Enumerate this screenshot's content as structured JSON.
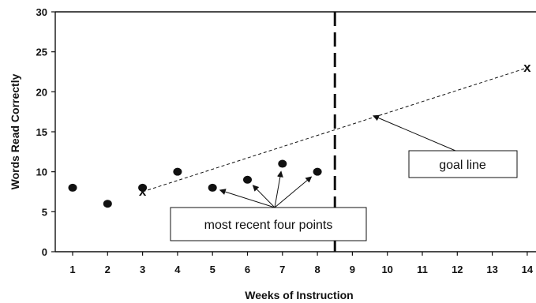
{
  "chart_data": {
    "type": "scatter",
    "xlabel": "Weeks of Instruction",
    "ylabel": "Words Read Correctly",
    "xlim": [
      0.6,
      14.6
    ],
    "ylim": [
      0,
      30
    ],
    "x_ticks": [
      1,
      2,
      3,
      4,
      5,
      6,
      7,
      8,
      9,
      10,
      11,
      12,
      13,
      14
    ],
    "y_ticks": [
      0,
      5,
      10,
      15,
      20,
      25,
      30
    ],
    "grid": false,
    "series": [
      {
        "values": [
          {
            "x": 1,
            "y": 8
          },
          {
            "x": 2,
            "y": 6
          },
          {
            "x": 3,
            "y": 8
          },
          {
            "x": 4,
            "y": 10
          },
          {
            "x": 5,
            "y": 8
          },
          {
            "x": 6,
            "y": 9
          },
          {
            "x": 7,
            "y": 11
          },
          {
            "x": 8,
            "y": 10
          }
        ]
      }
    ],
    "goal_line": {
      "label": "goal line",
      "marker": "x",
      "marker_text": "x",
      "start": {
        "x": 3,
        "y": 7.5
      },
      "end": {
        "x": 14,
        "y": 23
      }
    },
    "vertical_line_x": 8.5,
    "annotations": [
      {
        "text": "most recent four points",
        "targets": [
          {
            "x": 5,
            "y": 8
          },
          {
            "x": 6,
            "y": 9
          },
          {
            "x": 7,
            "y": 11
          },
          {
            "x": 8,
            "y": 10
          }
        ]
      },
      {
        "text": "goal line",
        "target": {
          "x": 9.6,
          "y": 17
        }
      }
    ],
    "colors": {
      "ink": "#111111",
      "background": "#ffffff"
    }
  }
}
